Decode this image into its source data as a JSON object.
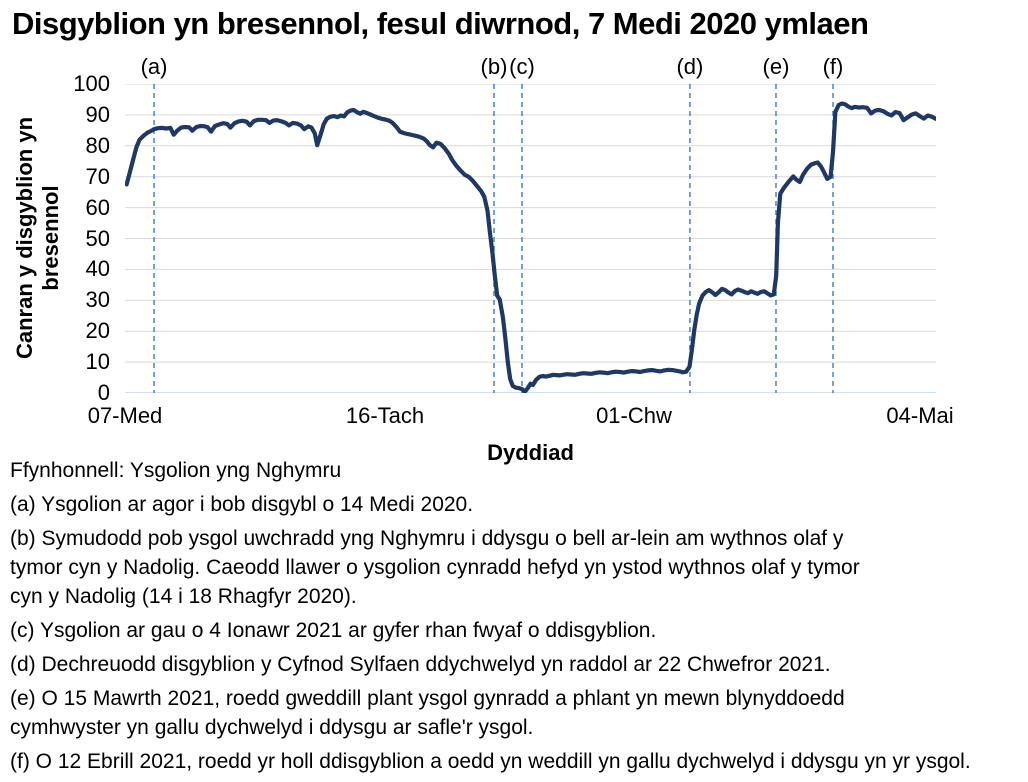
{
  "title": "Disgyblion yn bresennol, fesul diwrnod, 7 Medi 2020 ymlaen",
  "chart_data": {
    "type": "line",
    "title": "Disgyblion yn bresennol, fesul diwrnod, 7 Medi 2020 ymlaen",
    "xlabel": "Dyddiad",
    "ylabel": "Canran y disgyblion yn\nbresennol",
    "ylim": [
      0,
      100
    ],
    "grid": "horizontal",
    "legend": "none",
    "y_ticks": [
      0,
      10,
      20,
      30,
      40,
      50,
      60,
      70,
      80,
      90,
      100
    ],
    "x_ticks": [
      {
        "label": "07-Med",
        "pos": 0.0
      },
      {
        "label": "16-Tach",
        "pos": 0.3206
      },
      {
        "label": "01-Chw",
        "pos": 0.6276
      },
      {
        "label": "04-Mai",
        "pos": 0.9803
      }
    ],
    "annotations": [
      {
        "label": "(a)",
        "pos": 0.0358
      },
      {
        "label": "(b)",
        "pos": 0.455
      },
      {
        "label": "(c)",
        "pos": 0.4895
      },
      {
        "label": "(d)",
        "pos": 0.6966
      },
      {
        "label": "(e)",
        "pos": 0.8027
      },
      {
        "label": "(f)",
        "pos": 0.873
      }
    ],
    "line_color": "#1f3864",
    "annotation_line_color": "#3579d6",
    "gridline_color": "#d9d9d9",
    "baseline_color": "#bdd7ee",
    "series": [
      {
        "name": "Canran y disgyblion yn bresennol",
        "points": [
          [
            0.002,
            67.5
          ],
          [
            0.006,
            71.5
          ],
          [
            0.01,
            75.5
          ],
          [
            0.014,
            79.5
          ],
          [
            0.018,
            82.0
          ],
          [
            0.023,
            83.3
          ],
          [
            0.028,
            84.3
          ],
          [
            0.032,
            84.8
          ],
          [
            0.036,
            85.4
          ],
          [
            0.041,
            85.7
          ],
          [
            0.046,
            85.8
          ],
          [
            0.051,
            85.6
          ],
          [
            0.056,
            85.8
          ],
          [
            0.06,
            83.6
          ],
          [
            0.064,
            84.8
          ],
          [
            0.069,
            85.9
          ],
          [
            0.074,
            86.1
          ],
          [
            0.079,
            86.0
          ],
          [
            0.083,
            84.9
          ],
          [
            0.088,
            86.1
          ],
          [
            0.093,
            86.4
          ],
          [
            0.098,
            86.3
          ],
          [
            0.102,
            86.0
          ],
          [
            0.106,
            84.6
          ],
          [
            0.111,
            86.4
          ],
          [
            0.116,
            86.9
          ],
          [
            0.121,
            87.3
          ],
          [
            0.126,
            87.1
          ],
          [
            0.13,
            85.9
          ],
          [
            0.135,
            87.3
          ],
          [
            0.14,
            87.9
          ],
          [
            0.145,
            88.1
          ],
          [
            0.15,
            87.8
          ],
          [
            0.154,
            86.6
          ],
          [
            0.159,
            88.0
          ],
          [
            0.164,
            88.4
          ],
          [
            0.169,
            88.4
          ],
          [
            0.174,
            88.3
          ],
          [
            0.178,
            87.4
          ],
          [
            0.183,
            88.2
          ],
          [
            0.188,
            88.3
          ],
          [
            0.193,
            87.9
          ],
          [
            0.198,
            87.4
          ],
          [
            0.202,
            86.6
          ],
          [
            0.207,
            87.4
          ],
          [
            0.212,
            87.2
          ],
          [
            0.217,
            86.6
          ],
          [
            0.221,
            85.4
          ],
          [
            0.226,
            86.3
          ],
          [
            0.23,
            85.9
          ],
          [
            0.234,
            84.0
          ],
          [
            0.237,
            80.2
          ],
          [
            0.241,
            83.5
          ],
          [
            0.245,
            87.0
          ],
          [
            0.249,
            88.8
          ],
          [
            0.253,
            89.4
          ],
          [
            0.258,
            89.6
          ],
          [
            0.262,
            89.3
          ],
          [
            0.266,
            89.8
          ],
          [
            0.27,
            89.5
          ],
          [
            0.274,
            90.8
          ],
          [
            0.278,
            91.4
          ],
          [
            0.282,
            91.6
          ],
          [
            0.286,
            90.9
          ],
          [
            0.29,
            90.4
          ],
          [
            0.294,
            91.0
          ],
          [
            0.298,
            90.6
          ],
          [
            0.302,
            90.2
          ],
          [
            0.307,
            89.6
          ],
          [
            0.312,
            89.1
          ],
          [
            0.317,
            88.7
          ],
          [
            0.321,
            88.5
          ],
          [
            0.326,
            88.1
          ],
          [
            0.33,
            87.4
          ],
          [
            0.335,
            86.0
          ],
          [
            0.339,
            84.6
          ],
          [
            0.344,
            84.1
          ],
          [
            0.349,
            83.8
          ],
          [
            0.354,
            83.5
          ],
          [
            0.359,
            83.2
          ],
          [
            0.363,
            82.9
          ],
          [
            0.368,
            82.4
          ],
          [
            0.372,
            81.5
          ],
          [
            0.376,
            80.2
          ],
          [
            0.38,
            79.5
          ],
          [
            0.384,
            81.0
          ],
          [
            0.389,
            80.6
          ],
          [
            0.394,
            79.3
          ],
          [
            0.399,
            77.5
          ],
          [
            0.404,
            75.2
          ],
          [
            0.409,
            73.4
          ],
          [
            0.414,
            71.9
          ],
          [
            0.419,
            70.6
          ],
          [
            0.424,
            69.9
          ],
          [
            0.429,
            68.6
          ],
          [
            0.434,
            67.0
          ],
          [
            0.439,
            65.4
          ],
          [
            0.443,
            63.5
          ],
          [
            0.447,
            59.0
          ],
          [
            0.45,
            52.0
          ],
          [
            0.453,
            45.5
          ],
          [
            0.456,
            38.0
          ],
          [
            0.459,
            31.5
          ],
          [
            0.462,
            30.3
          ],
          [
            0.466,
            24.5
          ],
          [
            0.469,
            17.5
          ],
          [
            0.472,
            10.0
          ],
          [
            0.475,
            4.5
          ],
          [
            0.478,
            2.3
          ],
          [
            0.482,
            1.7
          ],
          [
            0.486,
            1.6
          ],
          [
            0.49,
            1.2
          ],
          [
            0.493,
            0.4
          ],
          [
            0.496,
            1.4
          ],
          [
            0.5,
            3.0
          ],
          [
            0.503,
            2.6
          ],
          [
            0.507,
            4.3
          ],
          [
            0.511,
            5.2
          ],
          [
            0.515,
            5.5
          ],
          [
            0.519,
            5.3
          ],
          [
            0.524,
            5.6
          ],
          [
            0.528,
            5.9
          ],
          [
            0.532,
            5.8
          ],
          [
            0.536,
            5.7
          ],
          [
            0.54,
            5.9
          ],
          [
            0.545,
            6.1
          ],
          [
            0.55,
            6.0
          ],
          [
            0.555,
            5.9
          ],
          [
            0.56,
            6.2
          ],
          [
            0.565,
            6.4
          ],
          [
            0.57,
            6.3
          ],
          [
            0.575,
            6.2
          ],
          [
            0.58,
            6.5
          ],
          [
            0.585,
            6.7
          ],
          [
            0.59,
            6.6
          ],
          [
            0.595,
            6.4
          ],
          [
            0.6,
            6.7
          ],
          [
            0.605,
            6.9
          ],
          [
            0.61,
            6.8
          ],
          [
            0.615,
            6.6
          ],
          [
            0.62,
            6.9
          ],
          [
            0.625,
            7.1
          ],
          [
            0.63,
            7.0
          ],
          [
            0.635,
            6.8
          ],
          [
            0.64,
            7.1
          ],
          [
            0.645,
            7.3
          ],
          [
            0.65,
            7.4
          ],
          [
            0.655,
            7.2
          ],
          [
            0.66,
            7.0
          ],
          [
            0.665,
            7.3
          ],
          [
            0.67,
            7.5
          ],
          [
            0.675,
            7.4
          ],
          [
            0.68,
            7.2
          ],
          [
            0.684,
            7.0
          ],
          [
            0.688,
            6.7
          ],
          [
            0.692,
            6.9
          ],
          [
            0.696,
            8.5
          ],
          [
            0.699,
            14.0
          ],
          [
            0.702,
            20.5
          ],
          [
            0.705,
            25.5
          ],
          [
            0.708,
            29.0
          ],
          [
            0.712,
            31.5
          ],
          [
            0.716,
            32.7
          ],
          [
            0.72,
            33.3
          ],
          [
            0.724,
            32.6
          ],
          [
            0.728,
            31.7
          ],
          [
            0.732,
            32.6
          ],
          [
            0.736,
            33.7
          ],
          [
            0.74,
            33.3
          ],
          [
            0.744,
            32.5
          ],
          [
            0.748,
            31.9
          ],
          [
            0.752,
            33.0
          ],
          [
            0.756,
            33.5
          ],
          [
            0.76,
            33.1
          ],
          [
            0.764,
            32.7
          ],
          [
            0.768,
            32.3
          ],
          [
            0.772,
            32.9
          ],
          [
            0.776,
            32.5
          ],
          [
            0.78,
            32.1
          ],
          [
            0.784,
            32.7
          ],
          [
            0.788,
            32.9
          ],
          [
            0.792,
            32.3
          ],
          [
            0.796,
            31.6
          ],
          [
            0.8,
            31.9
          ],
          [
            0.803,
            38.0
          ],
          [
            0.805,
            55.0
          ],
          [
            0.808,
            64.5
          ],
          [
            0.812,
            66.2
          ],
          [
            0.816,
            67.6
          ],
          [
            0.82,
            68.9
          ],
          [
            0.824,
            70.1
          ],
          [
            0.828,
            69.0
          ],
          [
            0.832,
            68.3
          ],
          [
            0.836,
            70.6
          ],
          [
            0.841,
            72.6
          ],
          [
            0.846,
            73.9
          ],
          [
            0.85,
            74.3
          ],
          [
            0.854,
            74.6
          ],
          [
            0.858,
            73.4
          ],
          [
            0.862,
            71.4
          ],
          [
            0.866,
            69.3
          ],
          [
            0.87,
            70.0
          ],
          [
            0.873,
            78.0
          ],
          [
            0.876,
            91.0
          ],
          [
            0.88,
            93.2
          ],
          [
            0.884,
            93.7
          ],
          [
            0.888,
            93.4
          ],
          [
            0.892,
            92.7
          ],
          [
            0.896,
            92.2
          ],
          [
            0.9,
            92.6
          ],
          [
            0.905,
            92.4
          ],
          [
            0.91,
            92.5
          ],
          [
            0.915,
            92.3
          ],
          [
            0.92,
            90.5
          ],
          [
            0.925,
            91.4
          ],
          [
            0.93,
            91.6
          ],
          [
            0.935,
            91.2
          ],
          [
            0.94,
            90.4
          ],
          [
            0.945,
            89.8
          ],
          [
            0.95,
            90.9
          ],
          [
            0.955,
            90.6
          ],
          [
            0.96,
            88.3
          ],
          [
            0.965,
            89.2
          ],
          [
            0.97,
            90.1
          ],
          [
            0.975,
            90.5
          ],
          [
            0.98,
            89.6
          ],
          [
            0.985,
            88.8
          ],
          [
            0.99,
            89.8
          ],
          [
            0.995,
            89.4
          ],
          [
            1.0,
            88.7
          ]
        ]
      }
    ]
  },
  "footer": {
    "source": "Ffynhonnell: Ysgolion yng Nghymru",
    "notes": {
      "a": "(a) Ysgolion ar agor i bob disgybl o 14 Medi 2020.",
      "b": "(b) Symudodd pob ysgol uwchradd yng Nghymru i ddysgu o bell ar-lein am wythnos olaf y\ntymor cyn y Nadolig. Caeodd llawer o ysgolion cynradd hefyd yn ystod wythnos olaf y tymor\ncyn y Nadolig (14 i 18 Rhagfyr 2020).",
      "c": "(c) Ysgolion ar gau o 4 Ionawr 2021 ar gyfer rhan fwyaf o ddisgyblion.",
      "d": "(d) Dechreuodd disgyblion y Cyfnod Sylfaen ddychwelyd yn raddol ar 22 Chwefror 2021.",
      "e": "(e) O 15 Mawrth 2021, roedd gweddill plant ysgol gynradd a phlant yn mewn blynyddoedd\ncymhwyster yn gallu dychwelyd i ddysgu ar safle'r ysgol.",
      "f": "(f) O 12 Ebrill 2021, roedd yr holl ddisgyblion a oedd yn weddill yn gallu dychwelyd i ddysgu yn yr ysgol."
    }
  }
}
